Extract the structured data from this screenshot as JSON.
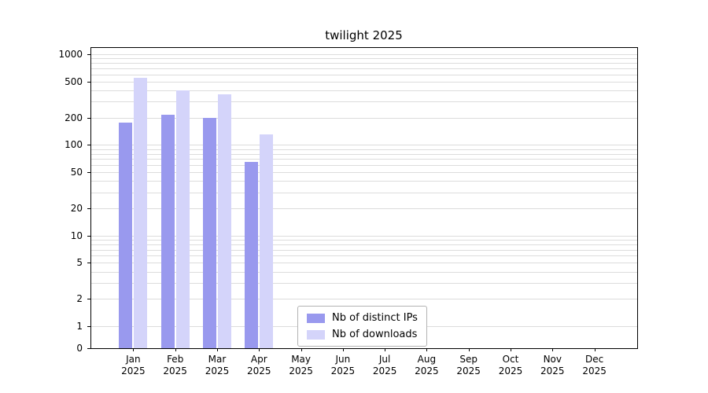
{
  "chart_data": {
    "type": "bar",
    "title": "twilight 2025",
    "year_label": "2025",
    "categories": [
      "Jan",
      "Feb",
      "Mar",
      "Apr",
      "May",
      "Jun",
      "Jul",
      "Aug",
      "Sep",
      "Oct",
      "Nov",
      "Dec"
    ],
    "series": [
      {
        "name": "Nb of distinct IPs",
        "color": "#9999ee",
        "values": [
          175,
          215,
          200,
          65,
          0,
          0,
          0,
          0,
          0,
          0,
          0,
          0
        ]
      },
      {
        "name": "Nb of downloads",
        "color": "#d4d4fa",
        "values": [
          550,
          400,
          360,
          130,
          0,
          0,
          0,
          0,
          0,
          0,
          0,
          0
        ]
      }
    ],
    "y_ticks": [
      1000,
      500,
      200,
      100,
      50,
      20,
      10,
      5,
      2,
      1,
      0
    ],
    "y_scale": "symlog",
    "ylim": [
      0,
      1200
    ],
    "grid": true,
    "grid_color": "#dcdcdc",
    "axis_color": "#000000",
    "legend_position": "lower center"
  }
}
